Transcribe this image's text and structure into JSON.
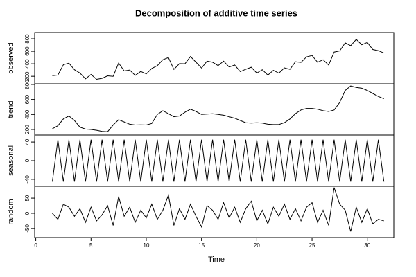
{
  "chart_data": {
    "type": "line",
    "title": "Decomposition of additive time series",
    "xlabel": "Time",
    "x": [
      1.5,
      2,
      2.5,
      3,
      3.5,
      4,
      4.5,
      5,
      5.5,
      6,
      6.5,
      7,
      7.5,
      8,
      8.5,
      9,
      9.5,
      10,
      10.5,
      11,
      11.5,
      12,
      12.5,
      13,
      13.5,
      14,
      14.5,
      15,
      15.5,
      16,
      16.5,
      17,
      17.5,
      18,
      18.5,
      19,
      19.5,
      20,
      20.5,
      21,
      21.5,
      22,
      22.5,
      23,
      23.5,
      24,
      24.5,
      25,
      25.5,
      26,
      26.5,
      27,
      27.5,
      28,
      28.5,
      29,
      29.5,
      30,
      30.5,
      31,
      31.5
    ],
    "xlim": [
      -0.1,
      32.4
    ],
    "xticks": [
      0,
      5,
      10,
      15,
      20,
      25,
      30
    ],
    "color": "#000000",
    "panels": [
      {
        "ylabel": "observed",
        "ylim": [
          80,
          900
        ],
        "yticks": [
          200,
          400,
          600,
          800
        ],
        "values": [
          210,
          220,
          385,
          410,
          305,
          252,
          160,
          230,
          152,
          168,
          207,
          200,
          412,
          285,
          300,
          215,
          277,
          238,
          325,
          370,
          465,
          500,
          310,
          402,
          400,
          515,
          425,
          332,
          442,
          425,
          370,
          442,
          348,
          380,
          275,
          312,
          345,
          252,
          305,
          218,
          295,
          250,
          335,
          310,
          432,
          422,
          510,
          532,
          425,
          465,
          380,
          588,
          605,
          735,
          690,
          790,
          705,
          742,
          628,
          610,
          572
        ]
      },
      {
        "ylabel": "trend",
        "ylim": [
          126,
          809
        ],
        "yticks": [
          200,
          400,
          600,
          800
        ],
        "values": [
          210,
          250,
          340,
          380,
          320,
          230,
          205,
          200,
          190,
          175,
          170,
          260,
          330,
          300,
          270,
          260,
          262,
          260,
          280,
          400,
          450,
          410,
          370,
          380,
          430,
          470,
          440,
          400,
          405,
          410,
          400,
          390,
          370,
          350,
          320,
          290,
          285,
          290,
          285,
          270,
          265,
          265,
          290,
          340,
          410,
          460,
          480,
          480,
          470,
          450,
          440,
          460,
          560,
          720,
          780,
          760,
          750,
          720,
          680,
          640,
          610
        ]
      },
      {
        "ylabel": "seasonal",
        "ylim": [
          -55,
          55
        ],
        "yticks": [
          -40,
          0,
          40
        ],
        "values": [
          -45,
          45,
          -45,
          45,
          -45,
          45,
          -45,
          45,
          -45,
          45,
          -45,
          45,
          -45,
          45,
          -45,
          45,
          -45,
          45,
          -45,
          45,
          -45,
          45,
          -45,
          45,
          -45,
          45,
          -45,
          45,
          -45,
          45,
          -45,
          45,
          -45,
          45,
          -45,
          45,
          -45,
          45,
          -45,
          45,
          -45,
          45,
          -45,
          45,
          -45,
          45,
          -45,
          45,
          -45,
          45,
          -45,
          45,
          -45,
          45,
          -45,
          45,
          -45,
          45,
          -45,
          45,
          -45
        ]
      },
      {
        "ylabel": "random",
        "ylim": [
          -80,
          89
        ],
        "yticks": [
          -50,
          0,
          50
        ],
        "values": [
          0,
          -20,
          30,
          20,
          -10,
          15,
          -30,
          20,
          -25,
          -5,
          25,
          -40,
          55,
          -10,
          20,
          -30,
          10,
          -15,
          30,
          -20,
          10,
          60,
          -40,
          15,
          -20,
          30,
          -10,
          -45,
          25,
          10,
          -20,
          35,
          -15,
          20,
          -30,
          15,
          40,
          -25,
          10,
          -35,
          20,
          -10,
          30,
          -20,
          15,
          -25,
          20,
          35,
          -30,
          10,
          -40,
          85,
          30,
          10,
          -60,
          20,
          -30,
          15,
          -35,
          -20,
          -25
        ]
      }
    ]
  }
}
